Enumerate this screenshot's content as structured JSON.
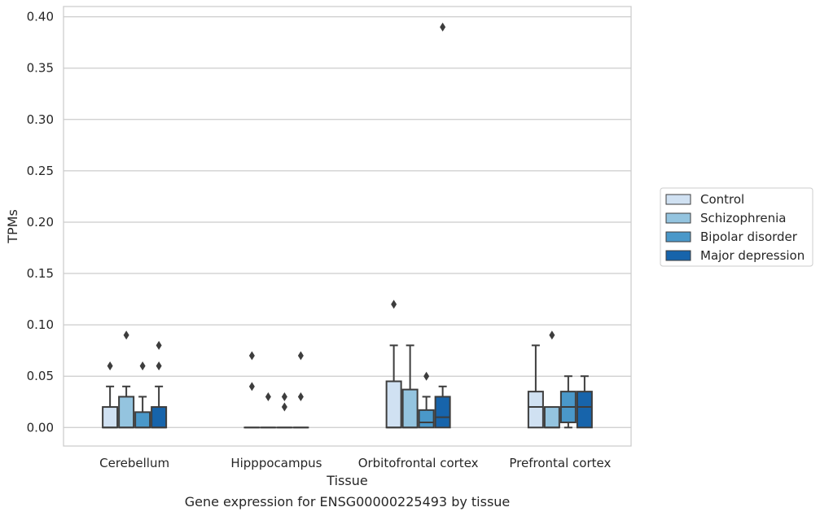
{
  "chart_data": {
    "type": "box",
    "title": "",
    "caption": "Gene expression for ENSG00000225493 by tissue",
    "xlabel": "Tissue",
    "ylabel": "TPMs",
    "ylim": [
      -0.018,
      0.41
    ],
    "yticks": [
      "0.00",
      "0.05",
      "0.10",
      "0.15",
      "0.20",
      "0.25",
      "0.30",
      "0.35",
      "0.40"
    ],
    "grid": "horizontal",
    "legend_position": "right",
    "categories": [
      "Cerebellum",
      "Hipppocampus",
      "Orbitofrontal cortex",
      "Prefrontal cortex"
    ],
    "series": [
      {
        "name": "Control",
        "color": "#d0e1f2",
        "boxes": [
          {
            "q1": 0.0,
            "median": 0.0,
            "q3": 0.02,
            "whisker_low": 0.0,
            "whisker_high": 0.04,
            "outliers": [
              0.06
            ]
          },
          {
            "q1": 0.0,
            "median": 0.0,
            "q3": 0.0,
            "whisker_low": 0.0,
            "whisker_high": 0.0,
            "outliers": [
              0.07,
              0.04
            ]
          },
          {
            "q1": 0.0,
            "median": 0.0,
            "q3": 0.045,
            "whisker_low": 0.0,
            "whisker_high": 0.08,
            "outliers": [
              0.12
            ]
          },
          {
            "q1": 0.0,
            "median": 0.02,
            "q3": 0.035,
            "whisker_low": 0.0,
            "whisker_high": 0.08,
            "outliers": []
          }
        ]
      },
      {
        "name": "Schizophrenia",
        "color": "#94c4df",
        "boxes": [
          {
            "q1": 0.0,
            "median": 0.0,
            "q3": 0.03,
            "whisker_low": 0.0,
            "whisker_high": 0.04,
            "outliers": [
              0.09
            ]
          },
          {
            "q1": 0.0,
            "median": 0.0,
            "q3": 0.0,
            "whisker_low": 0.0,
            "whisker_high": 0.0,
            "outliers": [
              0.03
            ]
          },
          {
            "q1": 0.0,
            "median": 0.0,
            "q3": 0.037,
            "whisker_low": 0.0,
            "whisker_high": 0.08,
            "outliers": []
          },
          {
            "q1": 0.0,
            "median": 0.0,
            "q3": 0.02,
            "whisker_low": 0.0,
            "whisker_high": 0.02,
            "outliers": [
              0.09
            ]
          }
        ]
      },
      {
        "name": "Bipolar disorder",
        "color": "#4a98c9",
        "boxes": [
          {
            "q1": 0.0,
            "median": 0.0,
            "q3": 0.015,
            "whisker_low": 0.0,
            "whisker_high": 0.03,
            "outliers": [
              0.06
            ]
          },
          {
            "q1": 0.0,
            "median": 0.0,
            "q3": 0.0,
            "whisker_low": 0.0,
            "whisker_high": 0.0,
            "outliers": [
              0.03,
              0.02
            ]
          },
          {
            "q1": 0.0,
            "median": 0.005,
            "q3": 0.017,
            "whisker_low": 0.0,
            "whisker_high": 0.03,
            "outliers": [
              0.05
            ]
          },
          {
            "q1": 0.005,
            "median": 0.02,
            "q3": 0.035,
            "whisker_low": 0.0,
            "whisker_high": 0.05,
            "outliers": []
          }
        ]
      },
      {
        "name": "Major depression",
        "color": "#1764ab",
        "boxes": [
          {
            "q1": 0.0,
            "median": 0.0,
            "q3": 0.02,
            "whisker_low": 0.0,
            "whisker_high": 0.04,
            "outliers": [
              0.08,
              0.06
            ]
          },
          {
            "q1": 0.0,
            "median": 0.0,
            "q3": 0.0,
            "whisker_low": 0.0,
            "whisker_high": 0.0,
            "outliers": [
              0.07,
              0.03
            ]
          },
          {
            "q1": 0.0,
            "median": 0.01,
            "q3": 0.03,
            "whisker_low": 0.0,
            "whisker_high": 0.04,
            "outliers": [
              0.39
            ]
          },
          {
            "q1": 0.0,
            "median": 0.02,
            "q3": 0.035,
            "whisker_low": 0.0,
            "whisker_high": 0.05,
            "outliers": []
          }
        ]
      }
    ]
  }
}
